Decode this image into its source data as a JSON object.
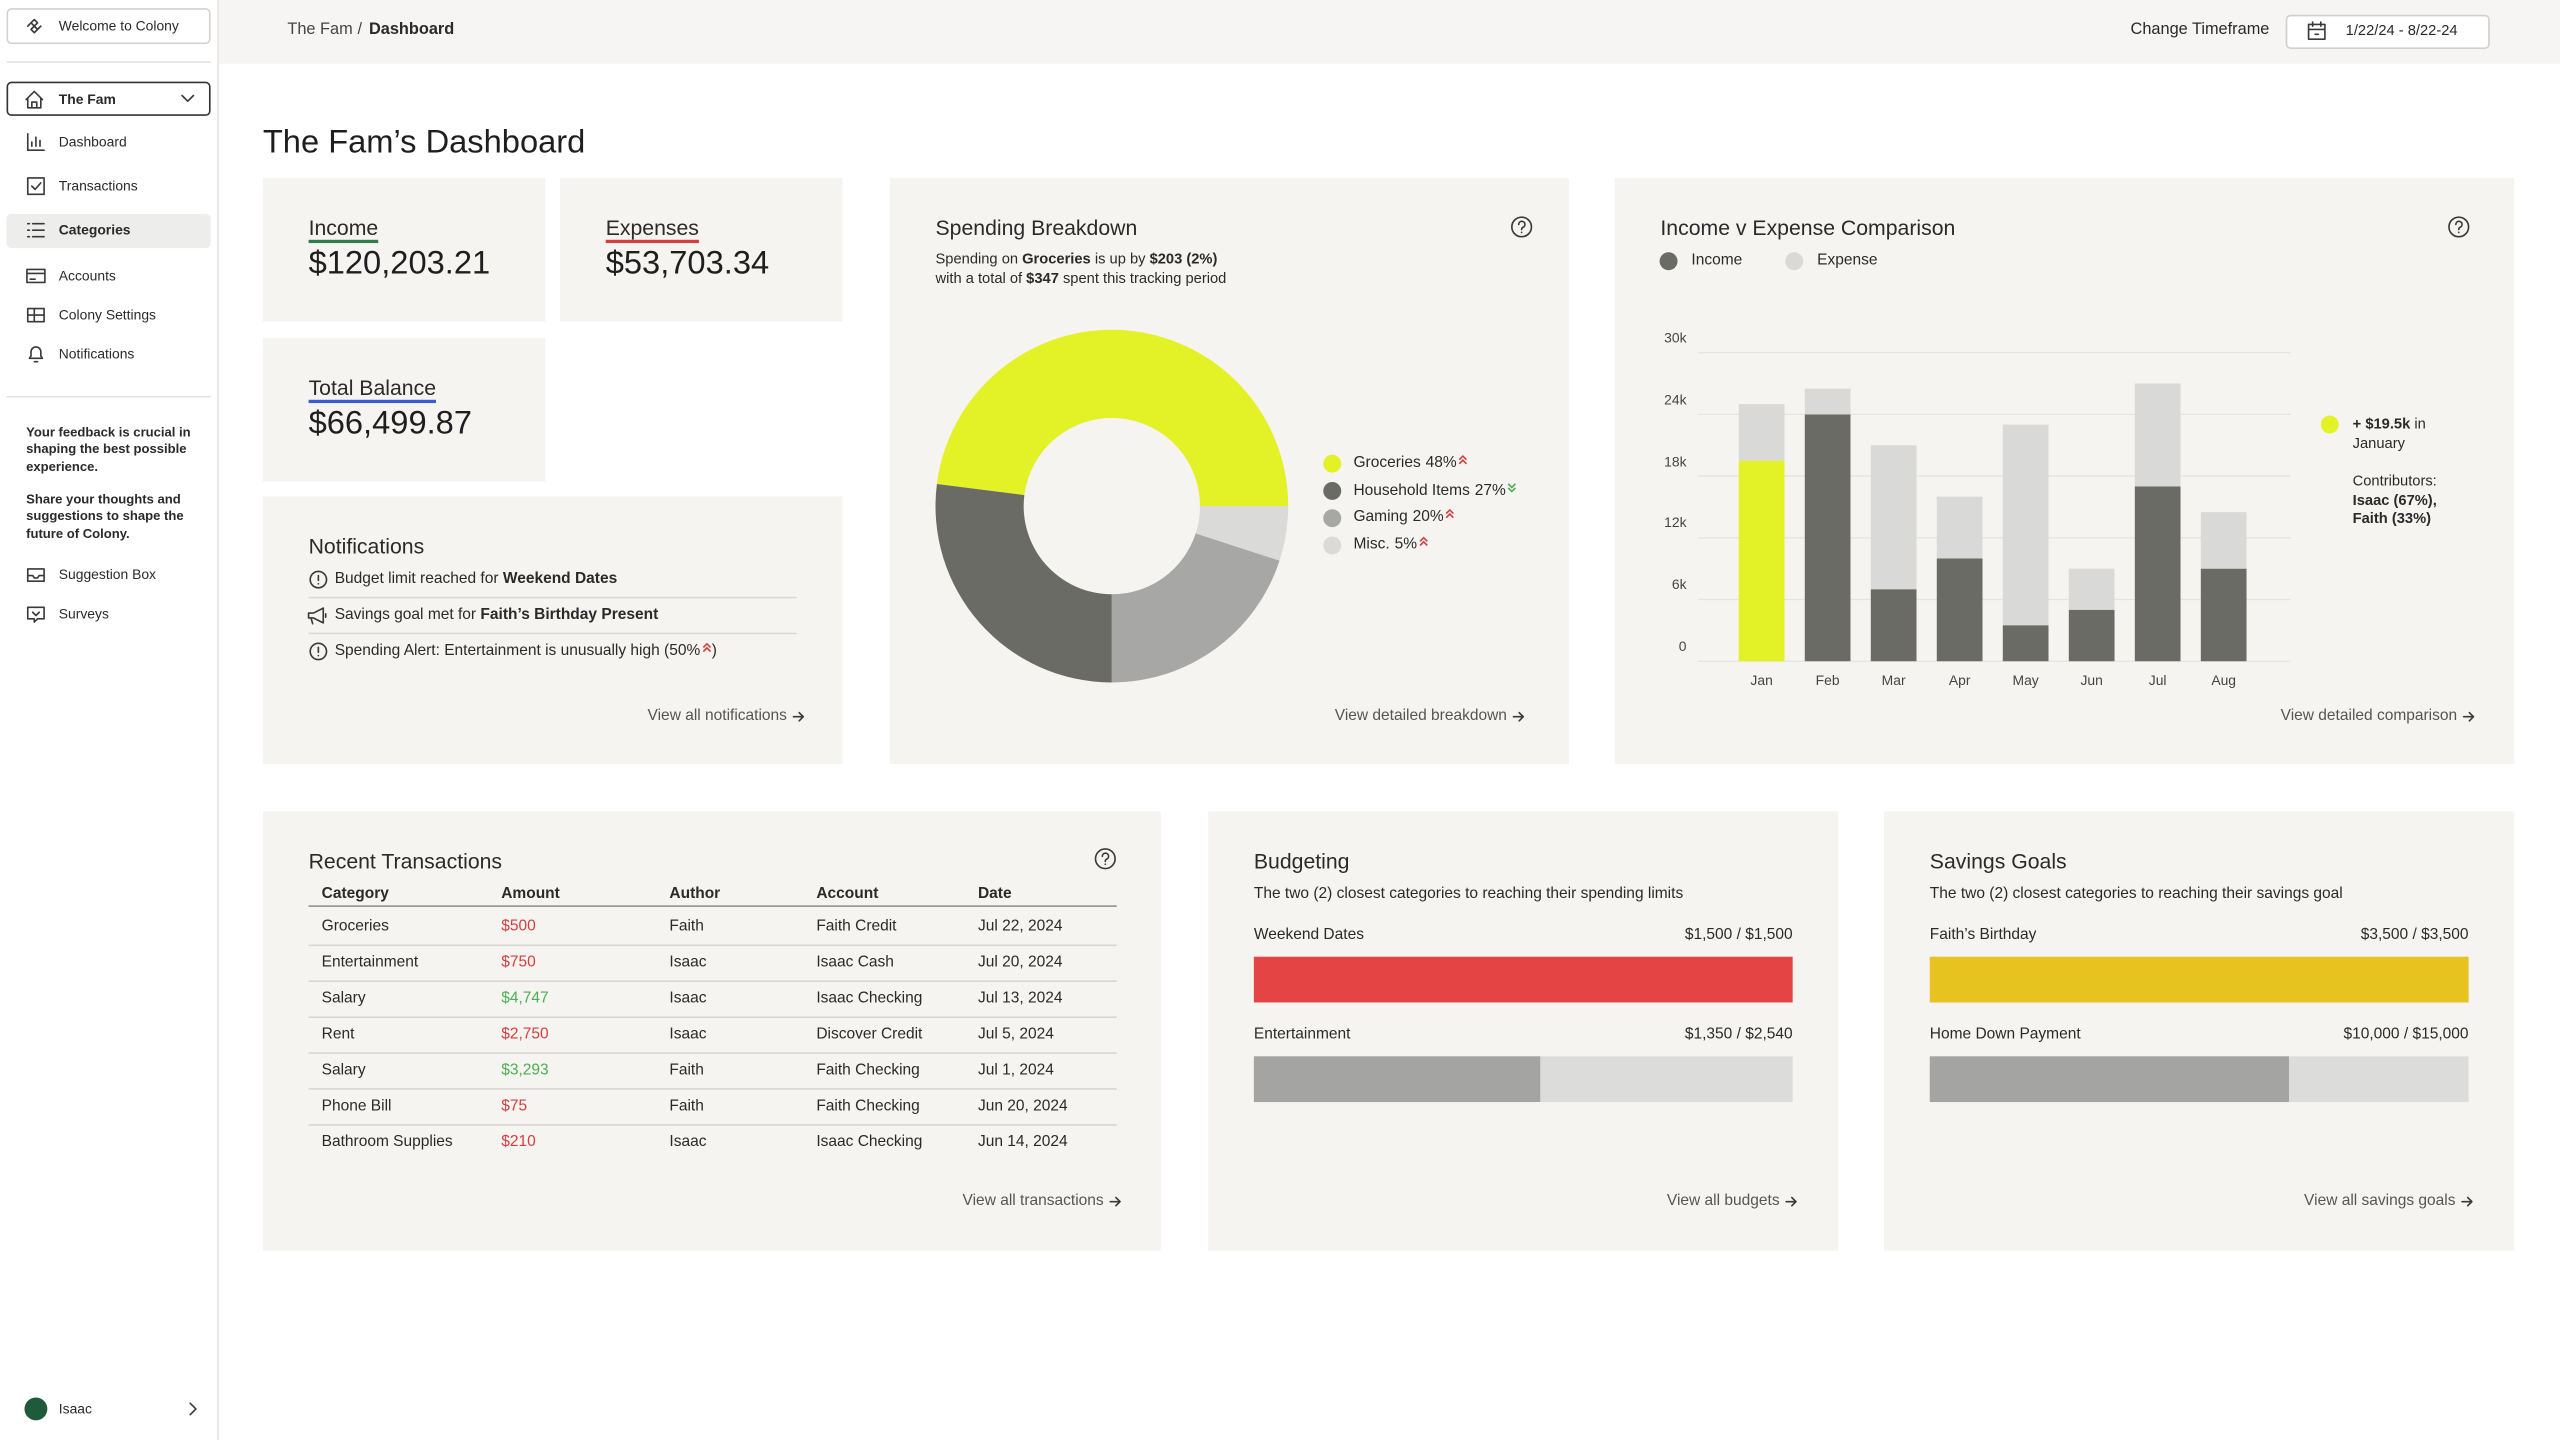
{
  "sidebar": {
    "welcome": "Welcome to Colony",
    "workspace": "The Fam",
    "nav": [
      "Dashboard",
      "Transactions",
      "Categories",
      "Accounts",
      "Colony Settings",
      "Notifications"
    ],
    "active_nav": 2,
    "feedback": [
      "Your feedback is crucial in shaping the best possible experience.",
      "Share your thoughts and suggestions to shape the future of Colony."
    ],
    "feedback_links": [
      "Suggestion Box",
      "Surveys"
    ],
    "user": "Isaac"
  },
  "topbar": {
    "breadcrumb": [
      "The Fam",
      "/",
      "Dashboard"
    ],
    "timeframe_label": "Change Timeframe",
    "timeframe": "1/22/24 - 8/22-24"
  },
  "page_title": "The Fam’s Dashboard",
  "stats": [
    {
      "label": "Income",
      "value": "$120,203.21",
      "underline": "#2f7d4a"
    },
    {
      "label": "Expenses",
      "value": "$53,703.34",
      "underline": "#d63d3d"
    },
    {
      "label": "Total Balance",
      "value": "$66,499.87",
      "underline": "#3b5bd6"
    }
  ],
  "notifications": {
    "title": "Notifications",
    "items": [
      {
        "icon": "alert",
        "parts": [
          "Budget limit reached for ",
          {
            "b": "Weekend Dates"
          }
        ]
      },
      {
        "icon": "megaphone",
        "parts": [
          "Savings goal met for ",
          {
            "b": "Faith’s Birthday Present"
          }
        ]
      },
      {
        "icon": "alert",
        "parts": [
          "Spending Alert: Entertainment is unusually high (50%",
          {
            "trend": "up"
          },
          ")"
        ]
      }
    ],
    "link": "View all notifications"
  },
  "chart_data": [
    {
      "type": "pie",
      "title": "Spending Breakdown",
      "subtitle": [
        [
          "Spending on ",
          {
            "b": "Groceries"
          },
          " is up by ",
          {
            "b": "$203 (2%)"
          }
        ],
        [
          "with a total of ",
          {
            "b": "$347"
          },
          " spent this tracking period"
        ]
      ],
      "categories": [
        "Groceries",
        "Household Items",
        "Gaming",
        "Misc."
      ],
      "values": [
        48,
        27,
        20,
        5
      ],
      "value_labels": [
        "48%",
        "27%",
        "20%",
        "5%"
      ],
      "colors": [
        "#e3f127",
        "#6b6b66",
        "#a7a7a5",
        "#dadad8"
      ],
      "trends": [
        "up",
        "down",
        "up",
        "up"
      ],
      "link": "View detailed breakdown"
    },
    {
      "type": "bar",
      "stacked": true,
      "title": "Income v Expense Comparison",
      "categories": [
        "Jan",
        "Feb",
        "Mar",
        "Apr",
        "May",
        "Jun",
        "Jul",
        "Aug"
      ],
      "series": [
        {
          "name": "Income",
          "color": "#6b6b66",
          "values": [
            19500,
            24000,
            7000,
            10000,
            3500,
            5000,
            17000,
            9000
          ]
        },
        {
          "name": "Expense",
          "color": "#d9d9d7",
          "values": [
            5500,
            2500,
            14000,
            6000,
            19500,
            4000,
            10000,
            5500
          ]
        }
      ],
      "highlight": {
        "series": 0,
        "index": 0,
        "color": "#e3f127"
      },
      "ylim": [
        0,
        30000
      ],
      "yticks": [
        0,
        {
          "value": 6000,
          "label": "6k"
        },
        {
          "value": 12000,
          "label": "12k"
        },
        {
          "value": 18000,
          "label": "18k"
        },
        {
          "value": 24000,
          "label": "24k"
        },
        {
          "value": 30000,
          "label": "30k"
        }
      ],
      "grid": true,
      "annotation": [
        [
          {
            "b": "+ $19.5k"
          },
          " in"
        ],
        [
          "January"
        ],
        [
          "Contributors:"
        ],
        [
          {
            "b": "Isaac (67%),"
          }
        ],
        [
          {
            "b": "Faith (33%)"
          }
        ]
      ],
      "link": "View detailed comparison"
    }
  ],
  "transactions": {
    "title": "Recent Transactions",
    "columns": [
      "Category",
      "Amount",
      "Author",
      "Account",
      "Date"
    ],
    "rows": [
      [
        "Groceries",
        "$500",
        "Faith",
        "Faith Credit",
        "Jul 22, 2024"
      ],
      [
        "Entertainment",
        "$750",
        "Isaac",
        "Isaac Cash",
        "Jul 20, 2024"
      ],
      [
        "Salary",
        "$4,747",
        "Isaac",
        "Isaac Checking",
        "Jul 13, 2024"
      ],
      [
        "Rent",
        "$2,750",
        "Isaac",
        "Discover Credit",
        "Jul 5, 2024"
      ],
      [
        "Salary",
        "$3,293",
        "Faith",
        "Faith Checking",
        "Jul 1, 2024"
      ],
      [
        "Phone Bill",
        "$75",
        "Faith",
        "Faith Checking",
        "Jun 20, 2024"
      ],
      [
        "Bathroom Supplies",
        "$210",
        "Isaac",
        "Isaac Checking",
        "Jun 14, 2024"
      ]
    ],
    "amount_kinds": [
      "expense",
      "expense",
      "income",
      "expense",
      "income",
      "expense",
      "expense"
    ],
    "kind_colors": {
      "expense": "#d63d3d",
      "income": "#4caf50"
    },
    "link": "View all transactions"
  },
  "budgeting": {
    "title": "Budgeting",
    "description": "The two (2) closest categories to reaching their spending limits",
    "items": [
      {
        "name": "Weekend Dates",
        "amount": "$1,500 / $1,500",
        "spent": 1500,
        "limit": 1500
      },
      {
        "name": "Entertainment",
        "amount": "$1,350 / $2,540",
        "spent": 1350,
        "limit": 2540
      }
    ],
    "full_color": "#e54444",
    "link": "View all budgets"
  },
  "savings": {
    "title": "Savings Goals",
    "description": "The two (2) closest categories to reaching their savings goal",
    "items": [
      {
        "name": "Faith’s Birthday",
        "amount": "$3,500 / $3,500",
        "spent": 3500,
        "limit": 3500
      },
      {
        "name": "Home Down Payment",
        "amount": "$10,000 / $15,000",
        "spent": 10000,
        "limit": 15000
      }
    ],
    "full_color": "#e6c31e",
    "link": "View all savings goals"
  }
}
